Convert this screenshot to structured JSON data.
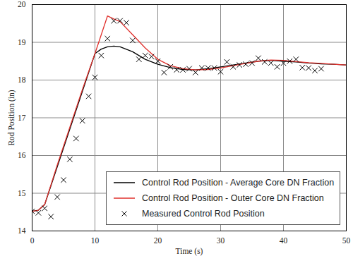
{
  "chart_data": {
    "type": "line",
    "x_label": "Time (s)",
    "y_label": "Rod Position (in)",
    "xlim": [
      0,
      50
    ],
    "ylim": [
      14,
      20
    ],
    "xticks": [
      0,
      10,
      20,
      30,
      40,
      50
    ],
    "yticks": [
      14,
      15,
      16,
      17,
      18,
      19,
      20
    ],
    "grid": true,
    "legend": "lower right",
    "series": [
      {
        "name": "Control Rod Position - Average Core DN Fraction",
        "type": "line",
        "color": "#000000",
        "line_style": "solid",
        "x": [
          0,
          1,
          2,
          4,
          6,
          8,
          10,
          11,
          12,
          13,
          14,
          16,
          18,
          20,
          22,
          24,
          26,
          28,
          30,
          32,
          34,
          36,
          38,
          40,
          42,
          44,
          46,
          48,
          50
        ],
        "values": [
          14.52,
          14.55,
          14.7,
          15.7,
          16.7,
          17.7,
          18.7,
          18.82,
          18.88,
          18.9,
          18.88,
          18.75,
          18.55,
          18.42,
          18.33,
          18.28,
          18.27,
          18.3,
          18.35,
          18.4,
          18.45,
          18.5,
          18.52,
          18.5,
          18.48,
          18.45,
          18.43,
          18.42,
          18.4
        ]
      },
      {
        "name": "Control Rod Position - Outer Core DN Fraction",
        "type": "line",
        "color": "#e0302c",
        "line_style": "solid",
        "x": [
          0,
          1,
          2,
          4,
          6,
          8,
          10,
          11,
          12,
          13,
          14,
          16,
          18,
          20,
          22,
          24,
          26,
          28,
          30,
          32,
          34,
          36,
          38,
          40,
          42,
          44,
          46,
          48,
          50
        ],
        "values": [
          14.52,
          14.55,
          14.7,
          15.75,
          16.75,
          17.75,
          18.7,
          19.2,
          19.7,
          19.62,
          19.55,
          19.2,
          18.85,
          18.55,
          18.38,
          18.3,
          18.27,
          18.28,
          18.32,
          18.38,
          18.44,
          18.5,
          18.53,
          18.52,
          18.49,
          18.46,
          18.44,
          18.42,
          18.4
        ]
      },
      {
        "name": "Measured Control Rod Position",
        "type": "scatter",
        "color": "#000000",
        "marker": "x",
        "x": [
          0,
          1,
          2,
          3,
          4,
          5,
          6,
          7,
          8,
          9,
          10,
          11,
          12,
          13,
          14,
          15,
          16,
          17,
          18,
          19,
          20,
          21,
          22,
          23,
          24,
          25,
          26,
          27,
          28,
          29,
          30,
          31,
          32,
          33,
          34,
          35,
          36,
          37,
          38,
          39,
          40,
          41,
          42,
          43,
          44,
          45,
          46
        ],
        "values": [
          14.52,
          14.48,
          14.6,
          14.38,
          14.9,
          15.35,
          15.9,
          16.45,
          16.92,
          17.57,
          18.07,
          18.65,
          19.1,
          19.57,
          19.57,
          19.52,
          19.05,
          18.55,
          18.65,
          18.62,
          18.5,
          18.2,
          18.35,
          18.27,
          18.27,
          18.3,
          18.2,
          18.32,
          18.32,
          18.32,
          18.22,
          18.48,
          18.35,
          18.4,
          18.42,
          18.45,
          18.58,
          18.48,
          18.45,
          18.35,
          18.45,
          18.5,
          18.55,
          18.33,
          18.32,
          18.25,
          18.3
        ]
      }
    ]
  }
}
